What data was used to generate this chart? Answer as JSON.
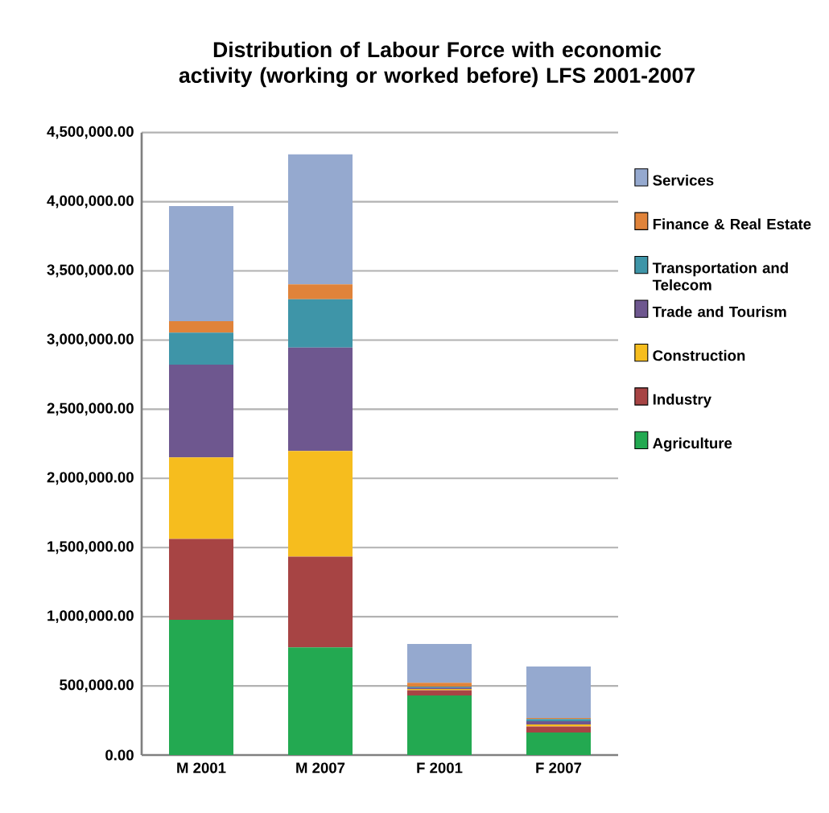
{
  "chart_data": {
    "type": "bar",
    "stacked": true,
    "title": "Distribution of Labour Force with economic activity (working or worked before) LFS 2001-2007",
    "categories": [
      "M 2001",
      "M 2007",
      "F 2001",
      "F 2007"
    ],
    "series": [
      {
        "name": "Agriculture",
        "color": "#23a951",
        "values": [
          977000,
          779000,
          430000,
          163000
        ]
      },
      {
        "name": "Industry",
        "color": "#a74444",
        "values": [
          585000,
          655000,
          39000,
          43000
        ]
      },
      {
        "name": "Construction",
        "color": "#f6bd1e",
        "values": [
          589000,
          764000,
          8000,
          15000
        ]
      },
      {
        "name": "Trade and Tourism",
        "color": "#6e578f",
        "values": [
          671000,
          748000,
          10000,
          23000
        ]
      },
      {
        "name": "Transportation and Telecom",
        "color": "#3e95a8",
        "values": [
          232000,
          349000,
          8000,
          16000
        ]
      },
      {
        "name": "Finance & Real Estate",
        "color": "#e0833a",
        "values": [
          82000,
          108000,
          28000,
          7000
        ]
      },
      {
        "name": "Services",
        "color": "#95a9cf",
        "values": [
          833000,
          940000,
          280000,
          373000
        ]
      }
    ],
    "ylim": [
      0,
      4500000
    ],
    "yticks": [
      {
        "value": 0,
        "label": "0.00"
      },
      {
        "value": 500000,
        "label": "500,000.00"
      },
      {
        "value": 1000000,
        "label": "1,000,000.00"
      },
      {
        "value": 1500000,
        "label": "1,500,000.00"
      },
      {
        "value": 2000000,
        "label": "2,000,000.00"
      },
      {
        "value": 2500000,
        "label": "2,500,000.00"
      },
      {
        "value": 3000000,
        "label": "3,000,000.00"
      },
      {
        "value": 3500000,
        "label": "3,500,000.00"
      },
      {
        "value": 4000000,
        "label": "4,000,000.00"
      },
      {
        "value": 4500000,
        "label": "4,500,000.00"
      }
    ],
    "grid": "y",
    "legend": "right"
  }
}
